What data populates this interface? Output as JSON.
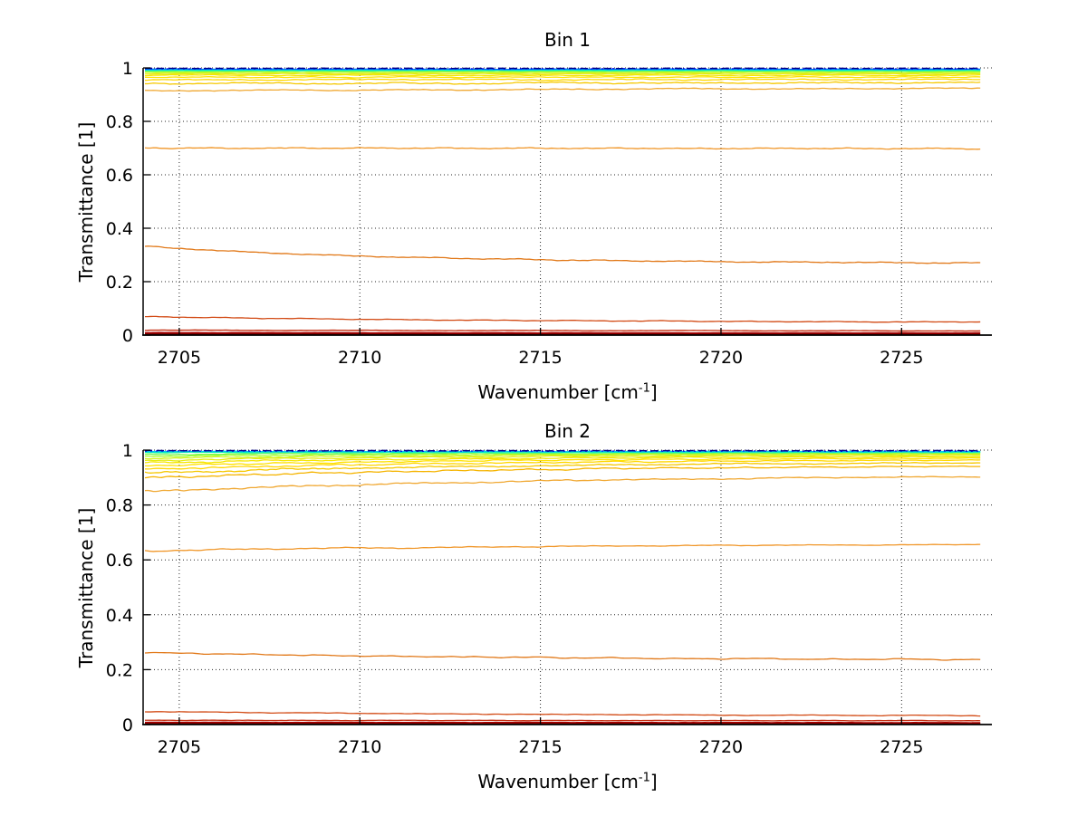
{
  "figure": {
    "background": "#FFFFFF",
    "grid_color": "#000000",
    "axis_color": "#000000"
  },
  "chart_data": [
    {
      "type": "line",
      "title": "Bin 1",
      "xlabel": "Wavenumber [cm⁻¹]",
      "xlabel_pre": "Wavenumber [cm",
      "xlabel_sup": "-1",
      "xlabel_post": "]",
      "ylabel": "Transmittance [1]",
      "xlim": [
        2704,
        2727.5
      ],
      "ylim": [
        0,
        1
      ],
      "xticks": [
        2705,
        2710,
        2715,
        2720,
        2725
      ],
      "xtick_labels": [
        "2705",
        "2710",
        "2715",
        "2720",
        "2725"
      ],
      "yticks": [
        0,
        0.2,
        0.4,
        0.6,
        0.8,
        1
      ],
      "ytick_labels": [
        "0",
        "0.2",
        "0.4",
        "0.6",
        "0.8",
        "1"
      ],
      "grid": "dotted",
      "box": "off",
      "legend": "none",
      "series": [
        {
          "color": "#00008F",
          "y_start": 0.9985,
          "y_end": 0.9985,
          "decay": 0,
          "noise": 0.0006,
          "width": 1.4,
          "dash": "8,5"
        },
        {
          "color": "#0000F0",
          "y_start": 0.997,
          "y_end": 0.997,
          "decay": 0,
          "noise": 0.0006,
          "width": 1.2,
          "dash": "2,4"
        },
        {
          "color": "#0064FF",
          "y_start": 0.9955,
          "y_end": 0.9955,
          "decay": 0,
          "noise": 0.0008,
          "width": 1.2
        },
        {
          "color": "#00C8F0",
          "y_start": 0.994,
          "y_end": 0.994,
          "decay": 0,
          "noise": 0.001,
          "width": 1.3
        },
        {
          "color": "#00F0C8",
          "y_start": 0.992,
          "y_end": 0.992,
          "decay": 0,
          "noise": 0.001,
          "width": 1.3
        },
        {
          "color": "#3CF596",
          "y_start": 0.9905,
          "y_end": 0.9905,
          "decay": 0,
          "noise": 0.0011,
          "width": 1.3
        },
        {
          "color": "#78FA50",
          "y_start": 0.9885,
          "y_end": 0.9885,
          "decay": 0,
          "noise": 0.0012,
          "width": 1.3
        },
        {
          "color": "#AAFF28",
          "y_start": 0.986,
          "y_end": 0.986,
          "decay": 0,
          "noise": 0.0013,
          "width": 1.3
        },
        {
          "color": "#D2F51E",
          "y_start": 0.9825,
          "y_end": 0.9825,
          "decay": 0,
          "noise": 0.0015,
          "width": 1.3
        },
        {
          "color": "#E6EB0F",
          "y_start": 0.978,
          "y_end": 0.978,
          "decay": 0,
          "noise": 0.0016,
          "width": 1.3
        },
        {
          "color": "#F5E600",
          "y_start": 0.9725,
          "y_end": 0.9725,
          "decay": 0,
          "noise": 0.0018,
          "width": 1.3
        },
        {
          "color": "#FFE100",
          "y_start": 0.9655,
          "y_end": 0.9655,
          "decay": 0,
          "noise": 0.002,
          "width": 1.3
        },
        {
          "color": "#FFD700",
          "y_start": 0.9555,
          "y_end": 0.9575,
          "decay": 0,
          "noise": 0.0026,
          "width": 1.3
        },
        {
          "color": "#F5C800",
          "y_start": 0.942,
          "y_end": 0.9445,
          "decay": 0,
          "noise": 0.003,
          "width": 1.3
        },
        {
          "color": "#F0A832",
          "y_start": 0.9145,
          "y_end": 0.9245,
          "decay": 0,
          "noise": 0.0022,
          "width": 1.3
        },
        {
          "color": "#F09628",
          "y_start": 0.7005,
          "y_end": 0.698,
          "decay": 0,
          "noise": 0.0022,
          "width": 1.3
        },
        {
          "color": "#E17818",
          "y_start": 0.332,
          "y_end": 0.268,
          "decay": 3.2,
          "noise": 0.0022,
          "width": 1.3
        },
        {
          "color": "#D24A14",
          "y_start": 0.069,
          "y_end": 0.0465,
          "decay": 2.2,
          "noise": 0.0014,
          "width": 1.3
        },
        {
          "color": "#C3280A",
          "y_start": 0.0185,
          "y_end": 0.016,
          "decay": 0,
          "noise": 0.0008,
          "width": 1.3
        },
        {
          "color": "#A50000",
          "y_start": 0.009,
          "y_end": 0.008,
          "decay": 0,
          "noise": 0.0006,
          "width": 1.5
        },
        {
          "color": "#7D0000",
          "y_start": 0.0045,
          "y_end": 0.004,
          "decay": 0,
          "noise": 0.0004,
          "width": 2
        },
        {
          "color": "#000000",
          "y_start": 0.0015,
          "y_end": 0.0015,
          "decay": 0,
          "noise": 0.0003,
          "width": 1.3,
          "dash": "9,7"
        }
      ]
    },
    {
      "type": "line",
      "title": "Bin 2",
      "xlabel": "Wavenumber [cm⁻¹]",
      "xlabel_pre": "Wavenumber [cm",
      "xlabel_sup": "-1",
      "xlabel_post": "]",
      "ylabel": "Transmittance [1]",
      "xlim": [
        2704,
        2727.5
      ],
      "ylim": [
        0,
        1
      ],
      "xticks": [
        2705,
        2710,
        2715,
        2720,
        2725
      ],
      "xtick_labels": [
        "2705",
        "2710",
        "2715",
        "2720",
        "2725"
      ],
      "yticks": [
        0,
        0.2,
        0.4,
        0.6,
        0.8,
        1
      ],
      "ytick_labels": [
        "0",
        "0.2",
        "0.4",
        "0.6",
        "0.8",
        "1"
      ],
      "grid": "dotted",
      "box": "off",
      "legend": "none",
      "series": [
        {
          "color": "#00008F",
          "y_start": 0.998,
          "y_end": 0.998,
          "decay": 0,
          "noise": 0.0008,
          "width": 1.4,
          "dash": "8,5"
        },
        {
          "color": "#0000F0",
          "y_start": 0.9965,
          "y_end": 0.9965,
          "decay": 0,
          "noise": 0.0008,
          "width": 1.2,
          "dash": "2,4"
        },
        {
          "color": "#00C8F0",
          "y_start": 0.995,
          "y_end": 0.995,
          "decay": 0,
          "noise": 0.0012,
          "width": 1.3
        },
        {
          "color": "#00F0C8",
          "y_start": 0.9935,
          "y_end": 0.9935,
          "decay": 0,
          "noise": 0.0013,
          "width": 1.3
        },
        {
          "color": "#3CF596",
          "y_start": 0.9915,
          "y_end": 0.9915,
          "decay": 0,
          "noise": 0.0014,
          "width": 1.3
        },
        {
          "color": "#78FA50",
          "y_start": 0.984,
          "y_end": 0.9925,
          "decay": 2.2,
          "noise": 0.002,
          "noise_fade": true,
          "width": 1.3
        },
        {
          "color": "#AAFF28",
          "y_start": 0.9775,
          "y_end": 0.9905,
          "decay": 2.2,
          "noise": 0.0024,
          "noise_fade": true,
          "width": 1.3
        },
        {
          "color": "#D2F51E",
          "y_start": 0.9705,
          "y_end": 0.987,
          "decay": 2.2,
          "noise": 0.0027,
          "noise_fade": true,
          "width": 1.3
        },
        {
          "color": "#E6EB0F",
          "y_start": 0.9625,
          "y_end": 0.9835,
          "decay": 2.2,
          "noise": 0.003,
          "noise_fade": true,
          "width": 1.3
        },
        {
          "color": "#F5E600",
          "y_start": 0.9535,
          "y_end": 0.979,
          "decay": 2.2,
          "noise": 0.0032,
          "noise_fade": true,
          "width": 1.3
        },
        {
          "color": "#FFE100",
          "y_start": 0.943,
          "y_end": 0.974,
          "decay": 2.2,
          "noise": 0.0035,
          "noise_fade": true,
          "width": 1.3
        },
        {
          "color": "#FFD700",
          "y_start": 0.9305,
          "y_end": 0.968,
          "decay": 2.2,
          "noise": 0.0038,
          "noise_fade": true,
          "width": 1.3
        },
        {
          "color": "#F5C800",
          "y_start": 0.916,
          "y_end": 0.9585,
          "decay": 2.2,
          "noise": 0.004,
          "noise_fade": true,
          "width": 1.3
        },
        {
          "color": "#F5B400",
          "y_start": 0.899,
          "y_end": 0.946,
          "decay": 2.2,
          "noise": 0.0042,
          "noise_fade": true,
          "width": 1.3
        },
        {
          "color": "#F0A832",
          "y_start": 0.849,
          "y_end": 0.9115,
          "decay": 2.0,
          "noise": 0.0045,
          "noise_fade": true,
          "width": 1.3
        },
        {
          "color": "#F09628",
          "y_start": 0.6335,
          "y_end": 0.6615,
          "decay": 1.6,
          "noise": 0.0032,
          "noise_fade": true,
          "width": 1.3
        },
        {
          "color": "#E17818",
          "y_start": 0.2625,
          "y_end": 0.2335,
          "decay": 2.2,
          "noise": 0.002,
          "width": 1.3
        },
        {
          "color": "#D24A14",
          "y_start": 0.047,
          "y_end": 0.0285,
          "decay": 1.6,
          "noise": 0.0012,
          "width": 1.3
        },
        {
          "color": "#C3280A",
          "y_start": 0.0155,
          "y_end": 0.014,
          "decay": 0,
          "noise": 0.0008,
          "width": 1.3
        },
        {
          "color": "#A50000",
          "y_start": 0.008,
          "y_end": 0.007,
          "decay": 0,
          "noise": 0.0006,
          "width": 1.5
        },
        {
          "color": "#7D0000",
          "y_start": 0.004,
          "y_end": 0.0035,
          "decay": 0,
          "noise": 0.0004,
          "width": 2
        },
        {
          "color": "#000000",
          "y_start": 0.0015,
          "y_end": 0.0015,
          "decay": 0,
          "noise": 0.0003,
          "width": 1.3,
          "dash": "9,7"
        }
      ]
    }
  ]
}
